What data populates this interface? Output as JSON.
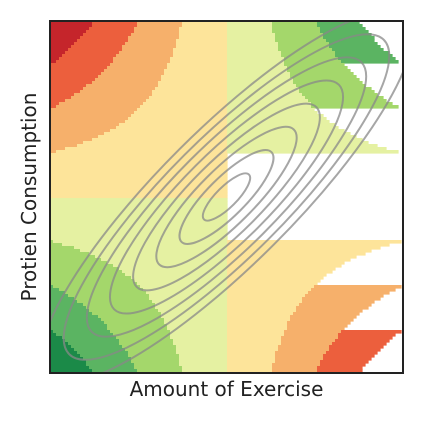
{
  "chart_data": {
    "type": "heatmap",
    "title": "",
    "xlabel": "Amount of Exercise",
    "ylabel": "Protien Consumption",
    "x_ticks_shown": false,
    "y_ticks_shown": false,
    "grid": false,
    "legend": "none",
    "background_field": {
      "description_of_values": "interaction field z = x*y over normalized axes [-1, 1], filled contour bands",
      "levels": [
        -1.0,
        -0.75,
        -0.5,
        -0.25,
        0.0,
        0.25,
        0.5,
        0.75,
        1.0
      ],
      "colors": [
        "#c5252b",
        "#ec5f3d",
        "#f6b06b",
        "#fde49a",
        "#e5f1a2",
        "#a4d76b",
        "#5bb462",
        "#1b8a48"
      ]
    },
    "overlay_ellipses": {
      "color": "#888888",
      "opacity": 0.75,
      "orientation": "positive correlation along diagonal",
      "rings": 8
    },
    "colors": {
      "frame": "#222222",
      "contour": "#888888"
    }
  }
}
